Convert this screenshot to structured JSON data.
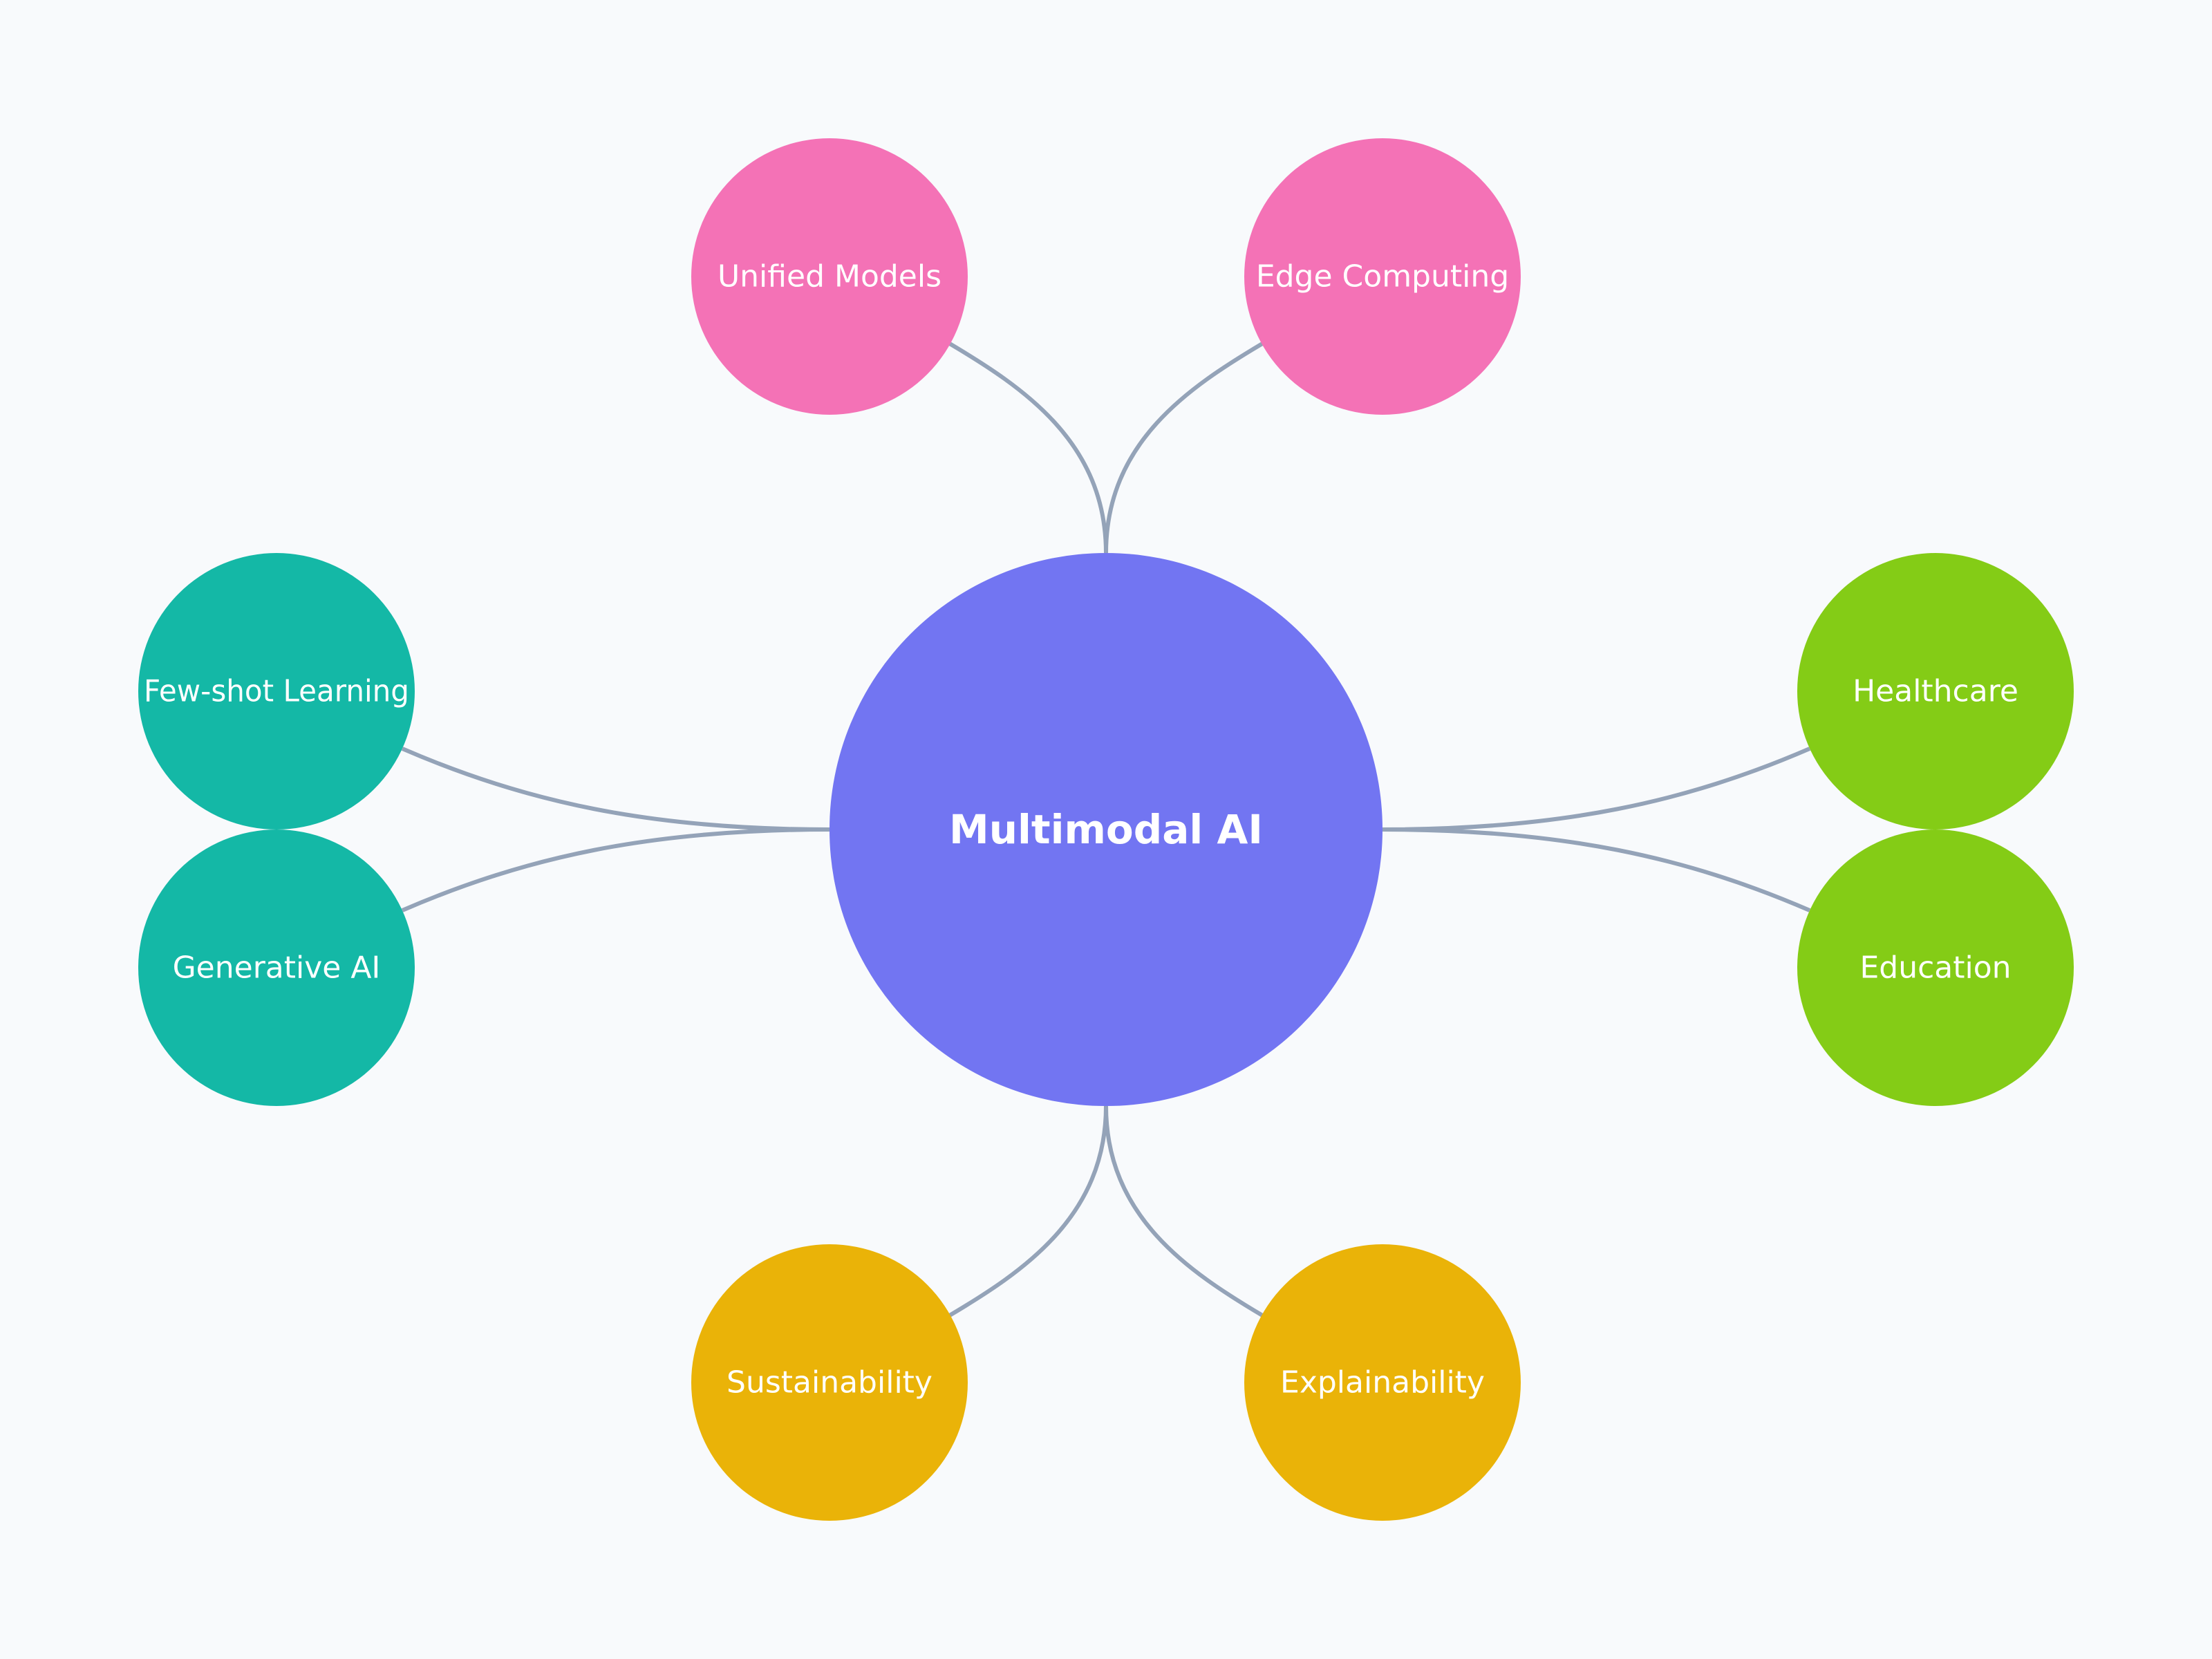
{
  "diagram": {
    "center": {
      "label": "Multimodal AI",
      "color": "#7275f2"
    },
    "branches": [
      {
        "label": "Unified Models",
        "color": "#f472b6"
      },
      {
        "label": "Edge Computing",
        "color": "#f472b6"
      },
      {
        "label": "Few-shot Learning",
        "color": "#14b8a6"
      },
      {
        "label": "Generative AI",
        "color": "#14b8a6"
      },
      {
        "label": "Healthcare",
        "color": "#84cc16"
      },
      {
        "label": "Education",
        "color": "#84cc16"
      },
      {
        "label": "Sustainability",
        "color": "#eab308"
      },
      {
        "label": "Explainability",
        "color": "#eab308"
      }
    ],
    "link_color": "#94a3b8",
    "background": "#f8fafc"
  }
}
